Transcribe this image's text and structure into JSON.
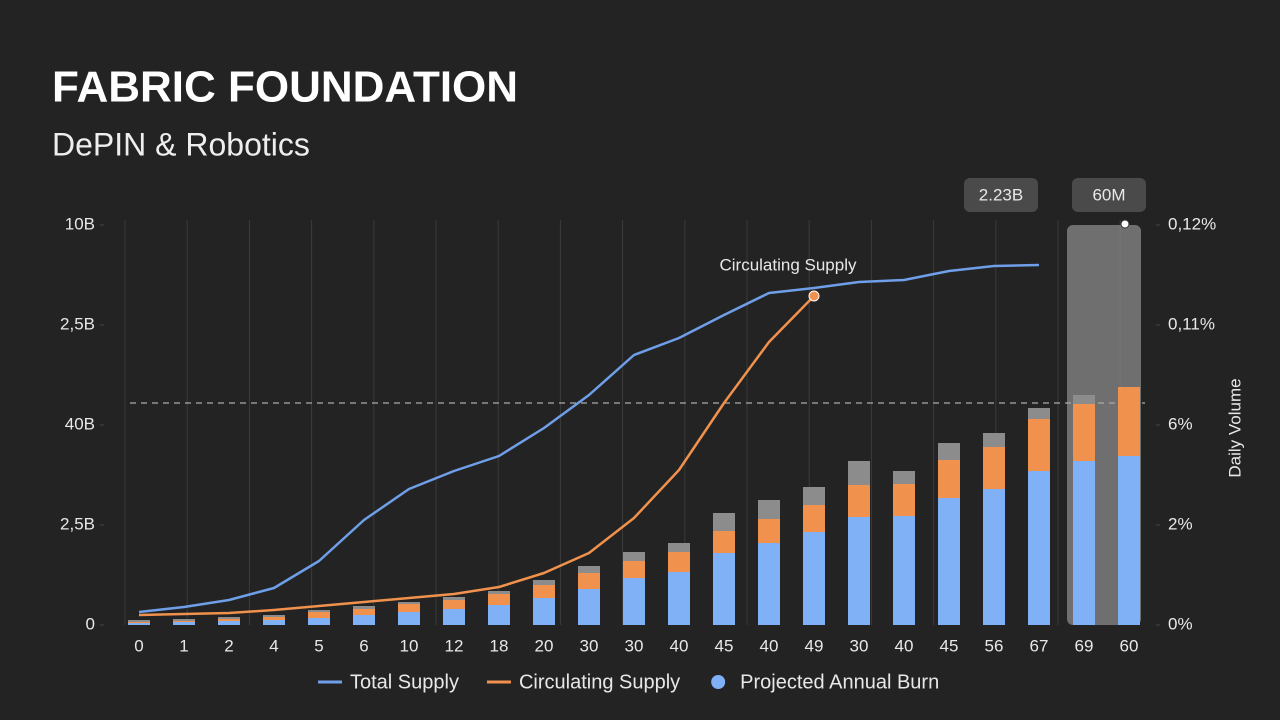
{
  "chart_data": {
    "type": "bar-line",
    "title": "FABRIC FOUNDATION",
    "subtitle": "DePIN & Robotics",
    "y2_label": "Daily Volume",
    "categories": [
      "0",
      "1",
      "2",
      "4",
      "5",
      "6",
      "10",
      "12",
      "18",
      "20",
      "30",
      "30",
      "40",
      "45",
      "40",
      "49",
      "30",
      "40",
      "45",
      "56",
      "67",
      "69",
      "60"
    ],
    "ylim": [
      0,
      4
    ],
    "yticks": [
      {
        "value": 0,
        "label": "0"
      },
      {
        "value": 1,
        "label": "2,5B"
      },
      {
        "value": 2,
        "label": "40B"
      },
      {
        "value": 3,
        "label": "2,5B"
      },
      {
        "value": 4,
        "label": "10B"
      }
    ],
    "y2lim": [
      0,
      4
    ],
    "y2ticks": [
      {
        "value": 0,
        "label": "0%"
      },
      {
        "value": 1,
        "label": "2%"
      },
      {
        "value": 2,
        "label": "6%"
      },
      {
        "value": 3,
        "label": "0,11%"
      },
      {
        "value": 4,
        "label": "0,12%"
      }
    ],
    "reference_line": 2.22,
    "annotations": [
      "Circulating Supply",
      "2.23B",
      "60M"
    ],
    "series": [
      {
        "name": "Total Supply",
        "kind": "line",
        "color": "#6f9fe8",
        "values": [
          0.13,
          0.18,
          0.25,
          0.37,
          0.64,
          1.05,
          1.36,
          1.54,
          1.69,
          1.97,
          2.3,
          2.7,
          2.87,
          3.1,
          3.32,
          3.37,
          3.43,
          3.45,
          3.54,
          3.59,
          3.6,
          null,
          null
        ]
      },
      {
        "name": "Circulating Supply",
        "kind": "line",
        "color": "#f0914d",
        "values": [
          0.1,
          0.11,
          0.12,
          0.15,
          0.19,
          0.23,
          0.27,
          0.31,
          0.38,
          0.52,
          0.72,
          1.07,
          1.55,
          2.22,
          2.83,
          3.29,
          null,
          null,
          null,
          null,
          null,
          null,
          null
        ]
      },
      {
        "name": "Projected Annual Burn",
        "kind": "bar",
        "color": "#80b1f7",
        "values": [
          0.02,
          0.03,
          0.04,
          0.05,
          0.07,
          0.1,
          0.13,
          0.16,
          0.2,
          0.27,
          0.36,
          0.47,
          0.53,
          0.72,
          0.82,
          0.93,
          1.08,
          1.09,
          1.27,
          1.36,
          1.54,
          1.64,
          1.69
        ]
      },
      {
        "kind": "bar",
        "color": "#f0914d",
        "values": [
          0.01,
          0.01,
          0.02,
          0.03,
          0.06,
          0.06,
          0.08,
          0.09,
          0.11,
          0.13,
          0.16,
          0.17,
          0.2,
          0.22,
          0.24,
          0.27,
          0.32,
          0.32,
          0.38,
          0.42,
          0.52,
          0.57,
          0.69
        ]
      },
      {
        "kind": "bar",
        "color": "#8c8c8c",
        "values": [
          0.02,
          0.02,
          0.02,
          0.02,
          0.02,
          0.03,
          0.02,
          0.03,
          0.03,
          0.05,
          0.07,
          0.09,
          0.09,
          0.18,
          0.19,
          0.18,
          0.24,
          0.13,
          0.17,
          0.14,
          0.11,
          0.09,
          0
        ]
      }
    ]
  }
}
